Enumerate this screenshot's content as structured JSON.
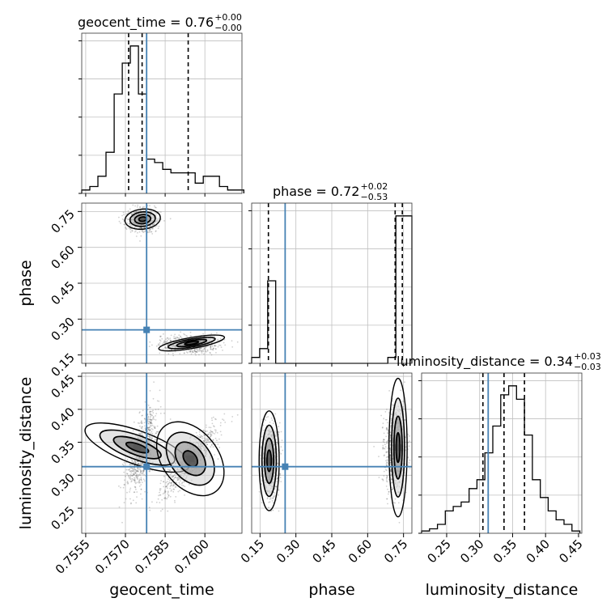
{
  "colors": {
    "truth": "#4682b4",
    "hist": "#000000",
    "grid": "#c0c0c0",
    "points": "#555555"
  },
  "chart_data": {
    "type": "corner",
    "parameters": [
      "geocent_time",
      "phase",
      "luminosity_distance"
    ],
    "truths": {
      "geocent_time": 0.7578,
      "phase": 0.255,
      "luminosity_distance": 0.313
    },
    "ranges": {
      "geocent_time": [
        0.75535,
        0.7614
      ],
      "phase": [
        0.115,
        0.785
      ],
      "luminosity_distance": [
        0.212,
        0.455
      ]
    },
    "ticks": {
      "geocent_time": [
        "0.7555",
        "0.7570",
        "0.7585",
        "0.7600"
      ],
      "phase": [
        "0.15",
        "0.30",
        "0.45",
        "0.60",
        "0.75"
      ],
      "luminosity_distance": [
        "0.25",
        "0.30",
        "0.35",
        "0.40",
        "0.45"
      ]
    },
    "tick_values": {
      "geocent_time": [
        0.7555,
        0.757,
        0.7585,
        0.76
      ],
      "phase": [
        0.15,
        0.3,
        0.45,
        0.6,
        0.75
      ],
      "luminosity_distance": [
        0.25,
        0.3,
        0.35,
        0.4,
        0.45
      ]
    },
    "labels": {
      "x": [
        "geocent_time",
        "phase",
        "luminosity_distance"
      ],
      "y": [
        "phase",
        "luminosity_distance"
      ]
    },
    "titles": [
      {
        "param": "geocent_time",
        "text": "geocent_time = 0.76",
        "plus": "+0.00",
        "minus": "−0.00"
      },
      {
        "param": "phase",
        "text": "phase = 0.72",
        "plus": "+0.02",
        "minus": "−0.53"
      },
      {
        "param": "luminosity_distance",
        "text": "luminosity_distance = 0.34",
        "plus": "+0.03",
        "minus": "−0.03"
      }
    ],
    "quantiles": {
      "geocent_time": [
        0.75712,
        0.75763,
        0.75937
      ],
      "phase": [
        0.185,
        0.715,
        0.745
      ],
      "luminosity_distance": [
        0.305,
        0.337,
        0.368
      ]
    },
    "histograms": {
      "geocent_time": {
        "edges": [
          0.75535,
          0.755656,
          0.755962,
          0.756268,
          0.756574,
          0.75688,
          0.757186,
          0.757492,
          0.757798,
          0.758104,
          0.75841,
          0.758716,
          0.759022,
          0.759328,
          0.759634,
          0.75994,
          0.760246,
          0.760552,
          0.760858,
          0.761164,
          0.76147
        ],
        "counts": [
          1,
          2,
          5,
          12,
          29,
          38,
          43,
          29,
          10,
          9,
          7,
          6,
          6,
          6,
          3,
          5,
          5,
          2,
          1,
          1
        ]
      },
      "phase": {
        "edges": [
          0.115,
          0.1485,
          0.182,
          0.2155,
          0.249,
          0.2825,
          0.316,
          0.3495,
          0.383,
          0.4165,
          0.45,
          0.4835,
          0.517,
          0.5505,
          0.584,
          0.6175,
          0.651,
          0.6845,
          0.718,
          0.7515,
          0.785
        ],
        "counts": [
          2,
          5,
          28,
          0,
          0,
          0,
          0,
          0,
          0,
          0,
          0,
          0,
          0,
          0,
          0,
          0,
          0,
          2,
          50,
          50
        ]
      },
      "luminosity_distance": {
        "edges": [
          0.212,
          0.224,
          0.236,
          0.248,
          0.26,
          0.272,
          0.284,
          0.296,
          0.308,
          0.32,
          0.332,
          0.344,
          0.356,
          0.368,
          0.38,
          0.392,
          0.404,
          0.416,
          0.428,
          0.44,
          0.452
        ],
        "counts": [
          0.5,
          1,
          2,
          5,
          6,
          7,
          10,
          12,
          18,
          24,
          31,
          33,
          30,
          22,
          12,
          8,
          5,
          3,
          2,
          0.5
        ]
      }
    }
  }
}
